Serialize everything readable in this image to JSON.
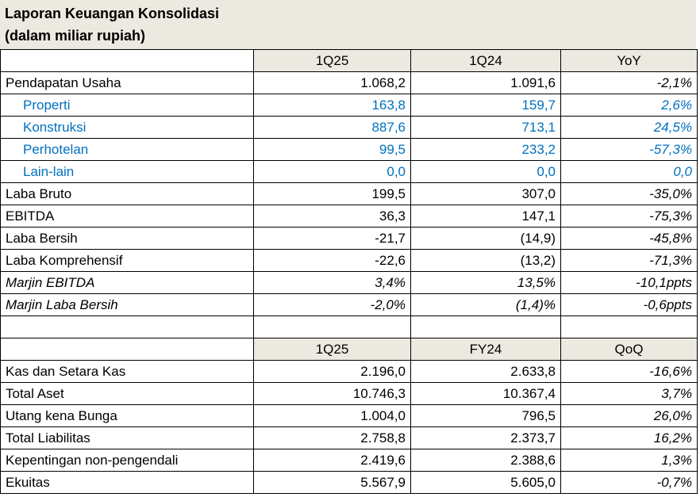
{
  "title": {
    "line1": "Laporan Keuangan Konsolidasi",
    "line2": "(dalam miliar rupiah)"
  },
  "colors": {
    "header_bg": "#ECE9E0",
    "sub_item": "#0070C0"
  },
  "income": {
    "headers": [
      "1Q25",
      "1Q24",
      "YoY"
    ],
    "rows": [
      {
        "label": "Pendapatan Usaha",
        "v": [
          "1.068,2",
          "1.091,6",
          "-2,1%"
        ],
        "sub": false,
        "italic": false
      },
      {
        "label": "Properti",
        "v": [
          "163,8",
          "159,7",
          "2,6%"
        ],
        "sub": true,
        "italic": false
      },
      {
        "label": "Konstruksi",
        "v": [
          "887,6",
          "713,1",
          "24,5%"
        ],
        "sub": true,
        "italic": false
      },
      {
        "label": "Perhotelan",
        "v": [
          "99,5",
          "233,2",
          "-57,3%"
        ],
        "sub": true,
        "italic": false
      },
      {
        "label": "Lain-lain",
        "v": [
          "0,0",
          "0,0",
          "0,0"
        ],
        "sub": true,
        "italic": false
      },
      {
        "label": "Laba Bruto",
        "v": [
          "199,5",
          "307,0",
          "-35,0%"
        ],
        "sub": false,
        "italic": false
      },
      {
        "label": "EBITDA",
        "v": [
          "36,3",
          "147,1",
          "-75,3%"
        ],
        "sub": false,
        "italic": false
      },
      {
        "label": "Laba Bersih",
        "v": [
          "-21,7",
          "(14,9)",
          "-45,8%"
        ],
        "sub": false,
        "italic": false
      },
      {
        "label": "Laba Komprehensif",
        "v": [
          "-22,6",
          "(13,2)",
          "-71,3%"
        ],
        "sub": false,
        "italic": false
      },
      {
        "label": "Marjin EBITDA",
        "v": [
          "3,4%",
          "13,5%",
          "-10,1ppts"
        ],
        "sub": false,
        "italic": true
      },
      {
        "label": "Marjin Laba Bersih",
        "v": [
          "-2,0%",
          "(1,4)%",
          "-0,6ppts"
        ],
        "sub": false,
        "italic": true
      }
    ]
  },
  "balance": {
    "headers": [
      "1Q25",
      "FY24",
      "QoQ"
    ],
    "rows": [
      {
        "label": "Kas dan Setara Kas",
        "v": [
          "2.196,0",
          "2.633,8",
          "-16,6%"
        ]
      },
      {
        "label": "Total Aset",
        "v": [
          "10.746,3",
          "10.367,4",
          "3,7%"
        ]
      },
      {
        "label": "Utang kena Bunga",
        "v": [
          "1.004,0",
          "796,5",
          "26,0%"
        ]
      },
      {
        "label": "Total Liabilitas",
        "v": [
          "2.758,8",
          "2.373,7",
          "16,2%"
        ]
      },
      {
        "label": "Kepentingan non-pengendali",
        "v": [
          "2.419,6",
          "2.388,6",
          "1,3%"
        ]
      },
      {
        "label": "Ekuitas",
        "v": [
          "5.567,9",
          "5.605,0",
          "-0,7%"
        ]
      }
    ]
  }
}
